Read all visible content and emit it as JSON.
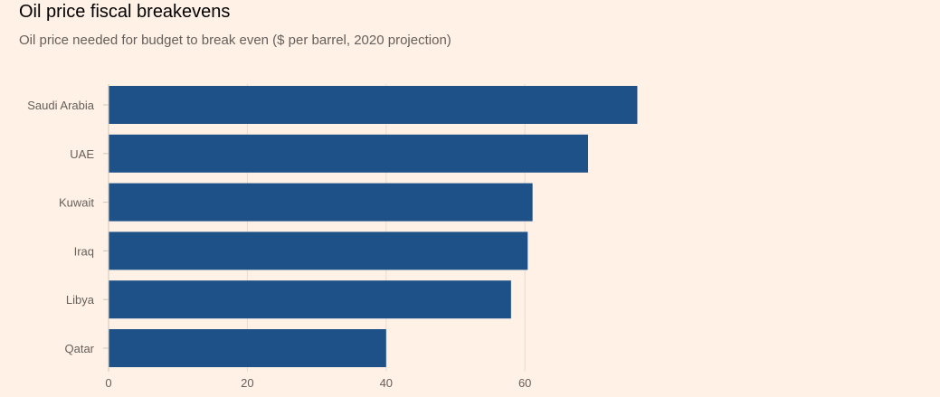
{
  "header": {
    "title": "Oil price fiscal breakevens",
    "subtitle": "Oil price needed for budget to break even ($ per barrel, 2020 projection)"
  },
  "colors": {
    "background": "#fff1e5",
    "bar": "#1f5189",
    "grid": "#e8ddd3",
    "axis": "#cec6bc",
    "text": "#66605c"
  },
  "chart_data": {
    "type": "bar",
    "orientation": "horizontal",
    "title": "Oil price fiscal breakevens",
    "subtitle": "Oil price needed for budget to break even ($ per barrel, 2020 projection)",
    "categories": [
      "Saudi Arabia",
      "UAE",
      "Kuwait",
      "Iraq",
      "Libya",
      "Qatar"
    ],
    "values": [
      76.2,
      69.1,
      61.1,
      60.4,
      58.0,
      40.0
    ],
    "xlim": [
      0,
      120
    ],
    "xticks": [
      0,
      20,
      40,
      60
    ],
    "grid": true
  }
}
